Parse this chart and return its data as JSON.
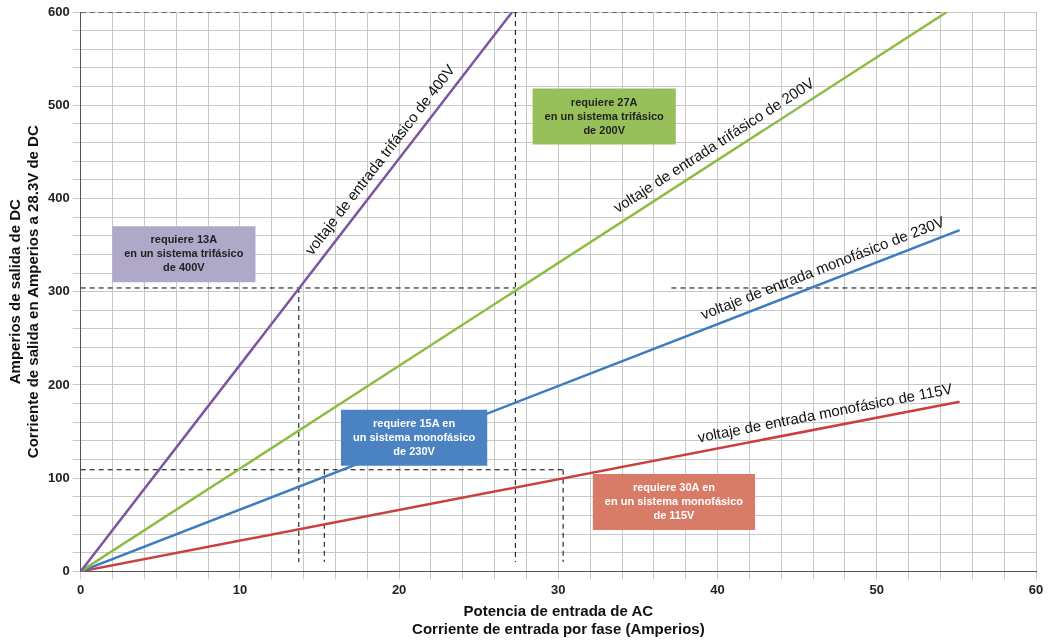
{
  "chart_data": {
    "type": "line",
    "xlabel": "Potencia de entrada de AC\nCorriente de entrada por fase (Amperios)",
    "ylabel": "Amperios de salida de DC\nCorriente de salida en Amperios a 28.3V de DC",
    "xlim": [
      0,
      60
    ],
    "ylim": [
      0,
      600
    ],
    "xticks": [
      0,
      {
        "value": 2,
        "label": null
      },
      {
        "value": 4,
        "label": null
      },
      {
        "value": 6,
        "label": null
      },
      {
        "value": 8,
        "label": null
      },
      10,
      {
        "value": 12,
        "label": null
      },
      {
        "value": 14,
        "label": null
      },
      {
        "value": 16,
        "label": null
      },
      {
        "value": 18,
        "label": null
      },
      20,
      {
        "value": 22,
        "label": null
      },
      {
        "value": 24,
        "label": null
      },
      {
        "value": 26,
        "label": null
      },
      {
        "value": 28,
        "label": null
      },
      30,
      {
        "value": 32,
        "label": null
      },
      {
        "value": 34,
        "label": null
      },
      {
        "value": 36,
        "label": null
      },
      {
        "value": 38,
        "label": null
      },
      40,
      {
        "value": 42,
        "label": null
      },
      {
        "value": 44,
        "label": null
      },
      {
        "value": 46,
        "label": null
      },
      {
        "value": 48,
        "label": null
      },
      50,
      {
        "value": 52,
        "label": null
      },
      {
        "value": 54,
        "label": null
      },
      {
        "value": 56,
        "label": null
      },
      {
        "value": 58,
        "label": null
      },
      60
    ],
    "yticks": [
      0,
      {
        "value": 20,
        "label": null
      },
      {
        "value": 40,
        "label": null
      },
      {
        "value": 60,
        "label": null
      },
      {
        "value": 80,
        "label": null
      },
      100,
      {
        "value": 120,
        "label": null
      },
      {
        "value": 140,
        "label": null
      },
      {
        "value": 160,
        "label": null
      },
      {
        "value": 180,
        "label": null
      },
      200,
      {
        "value": 220,
        "label": null
      },
      {
        "value": 240,
        "label": null
      },
      {
        "value": 260,
        "label": null
      },
      {
        "value": 280,
        "label": null
      },
      300,
      {
        "value": 320,
        "label": null
      },
      {
        "value": 340,
        "label": null
      },
      {
        "value": 360,
        "label": null
      },
      {
        "value": 380,
        "label": null
      },
      400,
      {
        "value": 420,
        "label": null
      },
      {
        "value": 440,
        "label": null
      },
      {
        "value": 460,
        "label": null
      },
      {
        "value": 480,
        "label": null
      },
      500,
      {
        "value": 520,
        "label": null
      },
      {
        "value": 540,
        "label": null
      },
      {
        "value": 560,
        "label": null
      },
      {
        "value": 580,
        "label": null
      },
      600
    ],
    "grid": true,
    "legend": false,
    "marker": "none",
    "series": [
      {
        "name": "voltaje de entrada trifásico de 400V",
        "color": "#7b559f",
        "x": [
          0,
          27.1
        ],
        "values": [
          0,
          600
        ]
      },
      {
        "name": "voltaje de entrada trifásico de 200V",
        "color": "#8dbb44",
        "x": [
          0,
          54.4
        ],
        "values": [
          0,
          600
        ]
      },
      {
        "name": "voltaje de entrada monofásico de 230V",
        "color": "#3d7cc0",
        "x": [
          0,
          55.2
        ],
        "values": [
          0,
          366
        ]
      },
      {
        "name": "voltaje de entrada monofásico de 115V",
        "color": "#c9403e",
        "x": [
          0,
          55.2
        ],
        "values": [
          0,
          182
        ]
      },
      {
        "color": "#000000",
        "line_style": "dashed",
        "x": [
          0,
          27.3
        ],
        "values": [
          304,
          304
        ]
      },
      {
        "color": "#000000",
        "line_style": "dashed",
        "x": [
          37.1,
          60
        ],
        "values": [
          304,
          304
        ]
      },
      {
        "color": "#000000",
        "line_style": "dashed",
        "x": [
          0,
          54.4
        ],
        "values": [
          600,
          600
        ]
      },
      {
        "color": "#000000",
        "line_style": "dashed",
        "x": [
          0,
          30.3
        ],
        "values": [
          109,
          109
        ]
      },
      {
        "color": "#000000",
        "line_style": "dashed",
        "x": [
          13.7,
          13.7
        ],
        "values": [
          304,
          10
        ]
      },
      {
        "color": "#000000",
        "line_style": "dashed",
        "x": [
          15.3,
          15.3
        ],
        "values": [
          109,
          10
        ]
      },
      {
        "color": "#000000",
        "line_style": "dashed",
        "x": [
          27.3,
          27.3
        ],
        "values": [
          600,
          10
        ]
      },
      {
        "color": "#000000",
        "line_style": "dashed",
        "x": [
          30.3,
          30.3
        ],
        "values": [
          109,
          10
        ]
      }
    ],
    "annotations": [
      "requiere 13A\nen un sistema trifásico\nde 400V",
      "requiere 27A\nen un sistema trifásico\nde 200V",
      "requiere 15A en\nun sistema monofásico\nde 230V",
      "requiere 30A en\nen un sistema monofásico\nde 115V"
    ]
  }
}
